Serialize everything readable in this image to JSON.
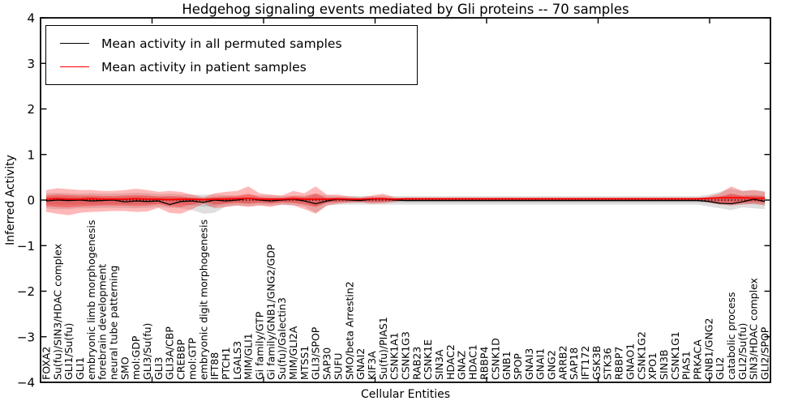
{
  "title": "Hedgehog signaling events mediated by Gli proteins -- 70 samples",
  "legend": {
    "items": [
      {
        "label": "Mean activity in all permuted samples",
        "color": "#000000"
      },
      {
        "label": "Mean activity in patient samples",
        "color": "#ff0000"
      }
    ]
  },
  "colors": {
    "patient_line": "#ff0000",
    "permuted_line": "#000000",
    "patient_band": "#ff0000",
    "permuted_band": "#b8b8b8",
    "frame": "#000000",
    "background": "#ffffff"
  },
  "axes": {
    "ylabel": "Inferred Activity",
    "xlabel": "Cellular Entities",
    "ytick_labels": [
      "4",
      "3",
      "2",
      "1",
      "0",
      "−1",
      "−2",
      "−3",
      "−4"
    ],
    "ytick_values": [
      4,
      3,
      2,
      1,
      0,
      -1,
      -2,
      -3,
      -4
    ],
    "xtick_numeric": [
      10,
      20,
      30,
      40,
      50,
      60
    ]
  },
  "chart_data": {
    "type": "area",
    "title": "Hedgehog signaling events mediated by Gli proteins -- 70 samples",
    "xlabel": "Cellular Entities",
    "ylabel": "Inferred Activity",
    "ylim": [
      -4,
      4
    ],
    "grid": false,
    "zero_line_style": "dotted",
    "legend_position": "upper left",
    "categories": [
      "FOXA2",
      "Su(fu)/SIN3/HDAC complex",
      "GLI1/Su(fu)",
      "GLI1",
      "embryonic limb morphogenesis",
      "forebrain development",
      "neural tube patterning",
      "SMO",
      "mol:GDP",
      "GLI3/Su(fu)",
      "GLI3",
      "GLI3A/CBP",
      "CREBBP",
      "mol:GTP",
      "embryonic digit morphogenesis",
      "IFT88",
      "PTCH1",
      "LGALS3",
      "MIM/GLI1",
      "Gi family/GTP",
      "Gi family/GNB1/GNG2/GDP",
      "Su(fu)/Galectin3",
      "MIM/GLI2A",
      "MTSS1",
      "GLI3/SPOP",
      "SAP30",
      "SUFU",
      "SMO/beta Arrestin2",
      "GNAI2",
      "KIF3A",
      "Su(fu)/PIAS1",
      "CSNK1A1",
      "CSNK1G3",
      "RAB23",
      "CSNK1E",
      "SIN3A",
      "HDAC2",
      "GNAZ",
      "HDAC1",
      "RBBP4",
      "CSNK1D",
      "GNB1",
      "SPOP",
      "GNAI3",
      "GNAI1",
      "GNG2",
      "ARRB2",
      "SAP18",
      "IFT172",
      "GSK3B",
      "STK36",
      "RBBP7",
      "GNAO1",
      "CSNK1G2",
      "XPO1",
      "SIN3B",
      "CSNK1G1",
      "PIAS1",
      "PRKACA",
      "GNB1/GNG2",
      "GLI2",
      "catabolic process",
      "GLI2/Su(fu)",
      "SIN3/HDAC complex",
      "GLI2/SPOP"
    ],
    "series": [
      {
        "name": "patient_upper",
        "values": [
          0.22,
          0.26,
          0.24,
          0.22,
          0.22,
          0.2,
          0.2,
          0.22,
          0.25,
          0.22,
          0.18,
          0.2,
          0.18,
          0.12,
          0.06,
          0.15,
          0.18,
          0.2,
          0.3,
          0.15,
          0.12,
          0.1,
          0.2,
          0.15,
          0.3,
          0.12,
          0.12,
          0.08,
          0.06,
          0.1,
          0.14,
          0.06,
          0.04,
          0.04,
          0.04,
          0.04,
          0.04,
          0.04,
          0.04,
          0.04,
          0.04,
          0.04,
          0.04,
          0.04,
          0.04,
          0.04,
          0.04,
          0.04,
          0.04,
          0.04,
          0.04,
          0.04,
          0.04,
          0.04,
          0.04,
          0.04,
          0.04,
          0.04,
          0.04,
          0.08,
          0.15,
          0.3,
          0.2,
          0.22,
          0.18
        ]
      },
      {
        "name": "patient_lower",
        "values": [
          -0.26,
          -0.3,
          -0.33,
          -0.28,
          -0.26,
          -0.25,
          -0.24,
          -0.24,
          -0.26,
          -0.25,
          -0.17,
          -0.28,
          -0.3,
          -0.2,
          -0.08,
          -0.18,
          -0.15,
          -0.12,
          -0.15,
          -0.12,
          -0.15,
          -0.1,
          -0.12,
          -0.2,
          -0.3,
          -0.12,
          -0.08,
          -0.06,
          -0.05,
          -0.08,
          -0.07,
          -0.04,
          -0.01,
          -0.01,
          -0.01,
          -0.01,
          -0.01,
          -0.01,
          -0.01,
          -0.01,
          -0.01,
          -0.01,
          -0.01,
          -0.01,
          -0.01,
          -0.01,
          -0.01,
          -0.01,
          -0.01,
          -0.01,
          -0.01,
          -0.01,
          -0.01,
          -0.01,
          -0.01,
          -0.01,
          -0.01,
          -0.01,
          -0.01,
          -0.05,
          -0.1,
          -0.12,
          -0.1,
          -0.08,
          -0.12
        ]
      },
      {
        "name": "patient_inner_upper",
        "values": [
          0.1,
          0.12,
          0.11,
          0.1,
          0.1,
          0.09,
          0.09,
          0.1,
          0.11,
          0.1,
          0.08,
          0.09,
          0.08,
          0.05,
          0.03,
          0.07,
          0.08,
          0.09,
          0.14,
          0.07,
          0.05,
          0.05,
          0.09,
          0.07,
          0.14,
          0.05,
          0.05,
          0.04,
          0.03,
          0.05,
          0.06,
          0.03,
          0.02,
          0.02,
          0.02,
          0.02,
          0.02,
          0.02,
          0.02,
          0.02,
          0.02,
          0.02,
          0.02,
          0.02,
          0.02,
          0.02,
          0.02,
          0.02,
          0.02,
          0.02,
          0.02,
          0.02,
          0.02,
          0.02,
          0.02,
          0.02,
          0.02,
          0.02,
          0.02,
          0.04,
          0.07,
          0.14,
          0.09,
          0.1,
          0.08
        ]
      },
      {
        "name": "patient_inner_lower",
        "values": [
          -0.13,
          -0.15,
          -0.16,
          -0.14,
          -0.13,
          -0.12,
          -0.12,
          -0.12,
          -0.13,
          -0.12,
          -0.09,
          -0.14,
          -0.15,
          -0.1,
          -0.04,
          -0.09,
          -0.08,
          -0.06,
          -0.08,
          -0.06,
          -0.08,
          -0.05,
          -0.06,
          -0.1,
          -0.15,
          -0.06,
          -0.04,
          -0.03,
          -0.03,
          -0.04,
          -0.04,
          -0.02,
          -0.01,
          -0.01,
          -0.01,
          -0.01,
          -0.01,
          -0.01,
          -0.01,
          -0.01,
          -0.01,
          -0.01,
          -0.01,
          -0.01,
          -0.01,
          -0.01,
          -0.01,
          -0.01,
          -0.01,
          -0.01,
          -0.01,
          -0.01,
          -0.01,
          -0.01,
          -0.01,
          -0.01,
          -0.01,
          -0.01,
          -0.01,
          -0.03,
          -0.05,
          -0.06,
          -0.05,
          -0.04,
          -0.06
        ]
      },
      {
        "name": "permuted_upper",
        "values": [
          0.15,
          0.16,
          0.15,
          0.14,
          0.15,
          0.14,
          0.14,
          0.15,
          0.16,
          0.15,
          0.13,
          0.14,
          0.13,
          0.12,
          0.12,
          0.12,
          0.11,
          0.1,
          0.12,
          0.1,
          0.1,
          0.09,
          0.1,
          0.1,
          0.15,
          0.1,
          0.09,
          0.09,
          0.09,
          0.09,
          0.1,
          0.09,
          0.09,
          0.09,
          0.09,
          0.09,
          0.09,
          0.09,
          0.09,
          0.09,
          0.09,
          0.09,
          0.09,
          0.09,
          0.09,
          0.09,
          0.09,
          0.09,
          0.09,
          0.09,
          0.09,
          0.09,
          0.09,
          0.09,
          0.09,
          0.09,
          0.09,
          0.09,
          0.09,
          0.12,
          0.18,
          0.25,
          0.2,
          0.22,
          0.2
        ]
      },
      {
        "name": "permuted_lower",
        "values": [
          -0.18,
          -0.2,
          -0.2,
          -0.18,
          -0.18,
          -0.17,
          -0.17,
          -0.17,
          -0.18,
          -0.17,
          -0.15,
          -0.17,
          -0.18,
          -0.22,
          -0.3,
          -0.28,
          -0.14,
          -0.12,
          -0.13,
          -0.11,
          -0.12,
          -0.1,
          -0.11,
          -0.14,
          -0.28,
          -0.12,
          -0.1,
          -0.1,
          -0.1,
          -0.1,
          -0.1,
          -0.1,
          -0.1,
          -0.1,
          -0.1,
          -0.1,
          -0.1,
          -0.1,
          -0.1,
          -0.1,
          -0.1,
          -0.1,
          -0.1,
          -0.1,
          -0.1,
          -0.1,
          -0.1,
          -0.1,
          -0.1,
          -0.1,
          -0.1,
          -0.1,
          -0.1,
          -0.1,
          -0.1,
          -0.1,
          -0.1,
          -0.1,
          -0.1,
          -0.14,
          -0.18,
          -0.22,
          -0.16,
          -0.18,
          -0.2
        ]
      },
      {
        "name": "permuted_inner_upper",
        "values": [
          0.08,
          0.08,
          0.08,
          0.07,
          0.08,
          0.07,
          0.07,
          0.08,
          0.08,
          0.08,
          0.07,
          0.07,
          0.07,
          0.06,
          0.06,
          0.06,
          0.06,
          0.05,
          0.06,
          0.05,
          0.05,
          0.05,
          0.05,
          0.05,
          0.08,
          0.05,
          0.05,
          0.05,
          0.05,
          0.05,
          0.05,
          0.05,
          0.05,
          0.05,
          0.05,
          0.05,
          0.05,
          0.05,
          0.05,
          0.05,
          0.05,
          0.05,
          0.05,
          0.05,
          0.05,
          0.05,
          0.05,
          0.05,
          0.05,
          0.05,
          0.05,
          0.05,
          0.05,
          0.05,
          0.05,
          0.05,
          0.05,
          0.05,
          0.05,
          0.06,
          0.09,
          0.13,
          0.1,
          0.11,
          0.1
        ]
      },
      {
        "name": "permuted_inner_lower",
        "values": [
          -0.09,
          -0.1,
          -0.1,
          -0.09,
          -0.09,
          -0.09,
          -0.09,
          -0.09,
          -0.09,
          -0.09,
          -0.08,
          -0.09,
          -0.09,
          -0.11,
          -0.15,
          -0.14,
          -0.07,
          -0.06,
          -0.07,
          -0.06,
          -0.06,
          -0.05,
          -0.06,
          -0.07,
          -0.14,
          -0.06,
          -0.05,
          -0.05,
          -0.05,
          -0.05,
          -0.05,
          -0.05,
          -0.05,
          -0.05,
          -0.05,
          -0.05,
          -0.05,
          -0.05,
          -0.05,
          -0.05,
          -0.05,
          -0.05,
          -0.05,
          -0.05,
          -0.05,
          -0.05,
          -0.05,
          -0.05,
          -0.05,
          -0.05,
          -0.05,
          -0.05,
          -0.05,
          -0.05,
          -0.05,
          -0.05,
          -0.05,
          -0.05,
          -0.05,
          -0.07,
          -0.09,
          -0.11,
          -0.08,
          -0.09,
          -0.1
        ]
      },
      {
        "name": "permuted_mean",
        "values": [
          -0.02,
          0.0,
          -0.01,
          0.0,
          -0.02,
          -0.01,
          0.0,
          -0.04,
          -0.02,
          -0.03,
          -0.02,
          -0.1,
          -0.03,
          -0.02,
          -0.05,
          0.0,
          -0.02,
          0.0,
          0.04,
          0.0,
          -0.02,
          0.0,
          0.02,
          -0.02,
          -0.08,
          -0.02,
          0.02,
          0.0,
          -0.01,
          0.02,
          0.03,
          0.0,
          -0.01,
          -0.01,
          -0.01,
          -0.01,
          -0.01,
          -0.01,
          -0.01,
          -0.01,
          -0.01,
          -0.01,
          -0.01,
          -0.01,
          -0.01,
          -0.01,
          -0.01,
          -0.01,
          -0.01,
          -0.01,
          -0.01,
          -0.01,
          -0.01,
          -0.01,
          -0.01,
          -0.01,
          -0.01,
          -0.01,
          -0.01,
          -0.03,
          -0.07,
          -0.08,
          -0.04,
          0.02,
          -0.03
        ]
      },
      {
        "name": "patient_mean",
        "values": [
          0.02,
          0.03,
          0.02,
          0.02,
          0.03,
          0.02,
          0.02,
          0.02,
          0.03,
          0.02,
          0.02,
          0.01,
          0.02,
          0.02,
          0.01,
          0.02,
          0.02,
          0.03,
          0.04,
          0.02,
          0.02,
          0.02,
          0.03,
          0.02,
          0.02,
          0.02,
          0.03,
          0.02,
          0.02,
          0.03,
          0.03,
          0.02,
          0.03,
          0.03,
          0.03,
          0.03,
          0.03,
          0.03,
          0.03,
          0.03,
          0.03,
          0.03,
          0.03,
          0.03,
          0.03,
          0.03,
          0.03,
          0.03,
          0.03,
          0.03,
          0.03,
          0.03,
          0.03,
          0.03,
          0.03,
          0.03,
          0.03,
          0.03,
          0.03,
          0.04,
          0.05,
          0.05,
          0.05,
          0.04,
          0.04
        ]
      }
    ]
  }
}
